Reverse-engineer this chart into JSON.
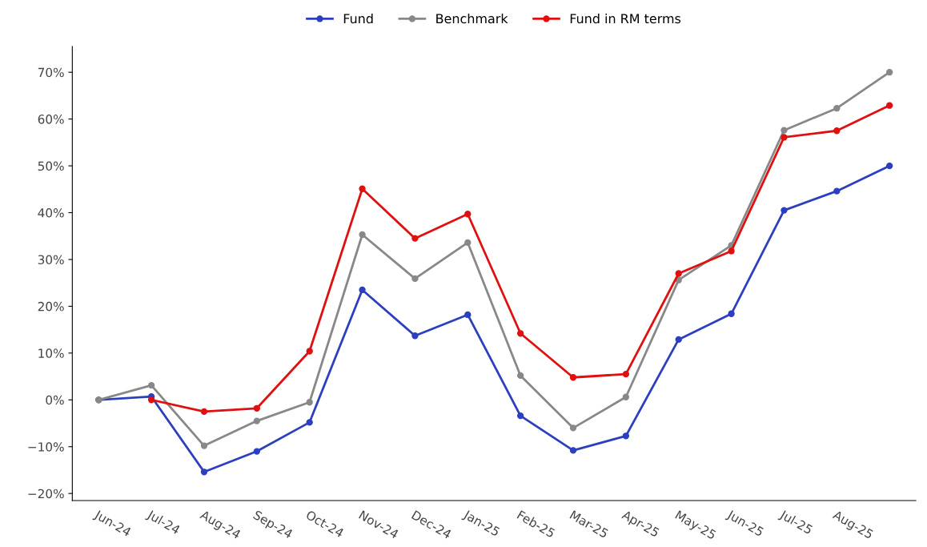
{
  "chart_data": {
    "type": "line",
    "categories": [
      "Jun-24",
      "Jul-24",
      "Aug-24",
      "Sep-24",
      "Oct-24",
      "Nov-24",
      "Dec-24",
      "Jan-25",
      "Feb-25",
      "Mar-25",
      "Apr-25",
      "May-25",
      "Jun-25",
      "Jul-25",
      "Aug-25",
      null
    ],
    "series": [
      {
        "name": "Fund",
        "color": "#2b3fbf",
        "values": [
          0,
          0.7,
          -15.4,
          -11.0,
          -4.8,
          23.5,
          13.7,
          18.2,
          -3.4,
          -10.8,
          -7.7,
          12.9,
          18.4,
          40.5,
          44.6,
          50.0
        ]
      },
      {
        "name": "Benchmark",
        "color": "#888888",
        "values": [
          0,
          3.1,
          -9.8,
          -4.5,
          -0.5,
          35.3,
          25.9,
          33.6,
          5.2,
          -6.0,
          0.6,
          25.6,
          33.0,
          57.6,
          62.3,
          70.0
        ]
      },
      {
        "name": "Fund in RM terms",
        "color": "#e01010",
        "values": [
          null,
          0,
          -2.5,
          -1.8,
          10.4,
          45.1,
          34.5,
          39.7,
          14.2,
          4.8,
          5.5,
          27.0,
          31.8,
          56.1,
          57.5,
          62.9
        ]
      }
    ],
    "ylim": [
      -21.5,
      75.5
    ],
    "yticks": [
      {
        "value": -20,
        "label": "−20%"
      },
      {
        "value": -10,
        "label": "−10%"
      },
      {
        "value": 0,
        "label": "0%"
      },
      {
        "value": 10,
        "label": "10%"
      },
      {
        "value": 20,
        "label": "20%"
      },
      {
        "value": 30,
        "label": "30%"
      },
      {
        "value": 40,
        "label": "40%"
      },
      {
        "value": 50,
        "label": "50%"
      },
      {
        "value": 60,
        "label": "60%"
      },
      {
        "value": 70,
        "label": "70%"
      }
    ],
    "grid": false,
    "legend": "top",
    "marker": "circle",
    "line_style": "solid"
  }
}
